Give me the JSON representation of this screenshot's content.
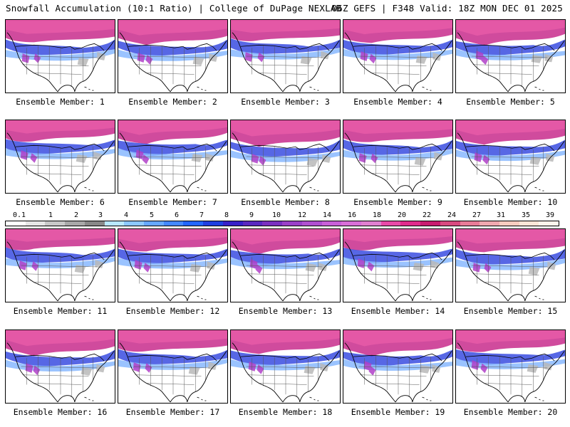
{
  "header": {
    "left": "Snowfall Accumulation (10:1 Ratio) | College of DuPage NEXLAB",
    "right": "06Z GEFS | F348 Valid: 18Z MON DEC 01 2025"
  },
  "caption_prefix": "Ensemble Member:",
  "members": [
    {
      "label": "Ensemble Member: 1"
    },
    {
      "label": "Ensemble Member: 2"
    },
    {
      "label": "Ensemble Member: 3"
    },
    {
      "label": "Ensemble Member: 4"
    },
    {
      "label": "Ensemble Member: 5"
    },
    {
      "label": "Ensemble Member: 6"
    },
    {
      "label": "Ensemble Member: 7"
    },
    {
      "label": "Ensemble Member: 8"
    },
    {
      "label": "Ensemble Member: 9"
    },
    {
      "label": "Ensemble Member: 10"
    },
    {
      "label": "Ensemble Member: 11"
    },
    {
      "label": "Ensemble Member: 12"
    },
    {
      "label": "Ensemble Member: 13"
    },
    {
      "label": "Ensemble Member: 14"
    },
    {
      "label": "Ensemble Member: 15"
    },
    {
      "label": "Ensemble Member: 16"
    },
    {
      "label": "Ensemble Member: 17"
    },
    {
      "label": "Ensemble Member: 18"
    },
    {
      "label": "Ensemble Member: 19"
    },
    {
      "label": "Ensemble Member: 20"
    }
  ],
  "colorbar": {
    "labels": [
      "0.1",
      "1",
      "2",
      "3",
      "4",
      "5",
      "6",
      "7",
      "8",
      "9",
      "10",
      "12",
      "14",
      "16",
      "18",
      "20",
      "22",
      "24",
      "27",
      "31",
      "35",
      "39"
    ],
    "colors": [
      "#ffffff",
      "#e6e6e6",
      "#c8c8c8",
      "#a8a8a8",
      "#888888",
      "#b8e8ff",
      "#8cc8ff",
      "#66a8ff",
      "#4488ff",
      "#2266ff",
      "#1f3fe0",
      "#3820c8",
      "#5a28c0",
      "#7a30c0",
      "#9a40c8",
      "#b050d0",
      "#c860d8",
      "#d870d8",
      "#e080d0",
      "#e84aa8",
      "#e02c8c",
      "#c81c70",
      "#d84a80",
      "#e87c98",
      "#f0a8b0",
      "#f8ccc0",
      "#fce6d8",
      "#fff4ec"
    ]
  }
}
